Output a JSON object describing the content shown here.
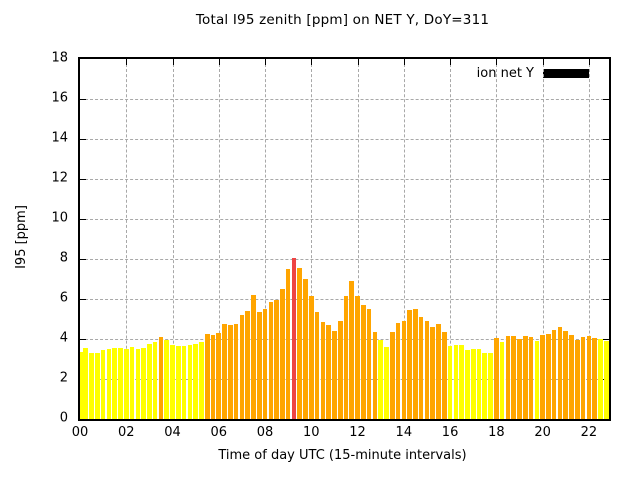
{
  "title": "Total I95 zenith [ppm] on NET Y, DoY=311",
  "legend": {
    "label": "ion net Y",
    "swatch_color": "#000000",
    "position": "top-right"
  },
  "axes": {
    "y": {
      "label": "I95 [ppm]",
      "min": 0,
      "max": 18,
      "ticks": [
        0,
        2,
        4,
        6,
        8,
        10,
        12,
        14,
        16,
        18
      ]
    },
    "x": {
      "label": "Time of day UTC (15-minute intervals)",
      "tick_labels": [
        "00",
        "02",
        "04",
        "06",
        "08",
        "10",
        "12",
        "14",
        "16",
        "18",
        "20",
        "22"
      ],
      "tick_hours": [
        0,
        2,
        4,
        6,
        8,
        10,
        12,
        14,
        16,
        18,
        20,
        22
      ],
      "max_hours": 22.87
    }
  },
  "colors": {
    "yellow": "#ffff00",
    "orange": "#ffa500",
    "red": "#ee4444",
    "grid": "#a8a8a8",
    "frame": "#000000",
    "background": "#ffffff"
  },
  "chart_data": {
    "type": "bar",
    "title": "Total I95 zenith [ppm] on NET Y, DoY=311",
    "xlabel": "Time of day UTC (15-minute intervals)",
    "ylabel": "I95 [ppm]",
    "ylim": [
      0,
      18
    ],
    "xlim_hours": [
      0,
      22.87
    ],
    "grid": true,
    "legend_entries": [
      "ion net Y"
    ],
    "legend_position": "top-right",
    "interval_minutes": 15,
    "x_hours": [
      0,
      0.25,
      0.5,
      0.75,
      1,
      1.25,
      1.5,
      1.75,
      2,
      2.25,
      2.5,
      2.75,
      3,
      3.25,
      3.5,
      3.75,
      4,
      4.25,
      4.5,
      4.75,
      5,
      5.25,
      5.5,
      5.75,
      6,
      6.25,
      6.5,
      6.75,
      7,
      7.25,
      7.5,
      7.75,
      8,
      8.25,
      8.5,
      8.75,
      9,
      9.25,
      9.5,
      9.75,
      10,
      10.25,
      10.5,
      10.75,
      11,
      11.25,
      11.5,
      11.75,
      12,
      12.25,
      12.5,
      12.75,
      13,
      13.25,
      13.5,
      13.75,
      14,
      14.25,
      14.5,
      14.75,
      15,
      15.25,
      15.5,
      15.75,
      16,
      16.25,
      16.5,
      16.75,
      17,
      17.25,
      17.5,
      17.75,
      18,
      18.25,
      18.5,
      18.75,
      19,
      19.25,
      19.5,
      19.75,
      20,
      20.25,
      20.5,
      20.75,
      21,
      21.25,
      21.5,
      21.75,
      22,
      22.25,
      22.5,
      22.75
    ],
    "values": [
      3.35,
      3.55,
      3.3,
      3.3,
      3.45,
      3.5,
      3.55,
      3.55,
      3.5,
      3.6,
      3.5,
      3.55,
      3.75,
      3.85,
      4.1,
      3.95,
      3.7,
      3.65,
      3.65,
      3.7,
      3.75,
      3.85,
      4.25,
      4.2,
      4.3,
      4.75,
      4.7,
      4.75,
      5.2,
      5.4,
      6.2,
      5.35,
      5.5,
      5.85,
      5.95,
      6.5,
      7.5,
      8.05,
      7.55,
      7.0,
      6.15,
      5.35,
      4.85,
      4.7,
      4.4,
      4.9,
      6.15,
      6.9,
      6.15,
      5.7,
      5.5,
      4.35,
      3.95,
      3.6,
      4.35,
      4.8,
      4.9,
      5.45,
      5.5,
      5.1,
      4.9,
      4.6,
      4.75,
      4.35,
      3.65,
      3.7,
      3.7,
      3.45,
      3.5,
      3.5,
      3.3,
      3.3,
      4.05,
      3.85,
      4.15,
      4.15,
      4.0,
      4.15,
      4.1,
      3.9,
      4.2,
      4.25,
      4.45,
      4.6,
      4.4,
      4.2,
      3.95,
      4.1,
      4.15,
      4.05,
      4.0,
      3.9
    ],
    "point_colors": [
      "yellow",
      "yellow",
      "yellow",
      "yellow",
      "yellow",
      "yellow",
      "yellow",
      "yellow",
      "yellow",
      "yellow",
      "yellow",
      "yellow",
      "yellow",
      "yellow",
      "orange",
      "yellow",
      "yellow",
      "yellow",
      "yellow",
      "yellow",
      "yellow",
      "yellow",
      "orange",
      "orange",
      "orange",
      "orange",
      "orange",
      "orange",
      "orange",
      "orange",
      "orange",
      "orange",
      "orange",
      "orange",
      "orange",
      "orange",
      "orange",
      "red",
      "orange",
      "orange",
      "orange",
      "orange",
      "orange",
      "orange",
      "orange",
      "orange",
      "orange",
      "orange",
      "orange",
      "orange",
      "orange",
      "orange",
      "yellow",
      "yellow",
      "orange",
      "orange",
      "orange",
      "orange",
      "orange",
      "orange",
      "orange",
      "orange",
      "orange",
      "orange",
      "yellow",
      "yellow",
      "yellow",
      "yellow",
      "yellow",
      "yellow",
      "yellow",
      "yellow",
      "orange",
      "yellow",
      "orange",
      "orange",
      "orange",
      "orange",
      "orange",
      "yellow",
      "orange",
      "orange",
      "orange",
      "orange",
      "orange",
      "orange",
      "orange",
      "orange",
      "orange",
      "orange",
      "yellow",
      "yellow"
    ]
  }
}
